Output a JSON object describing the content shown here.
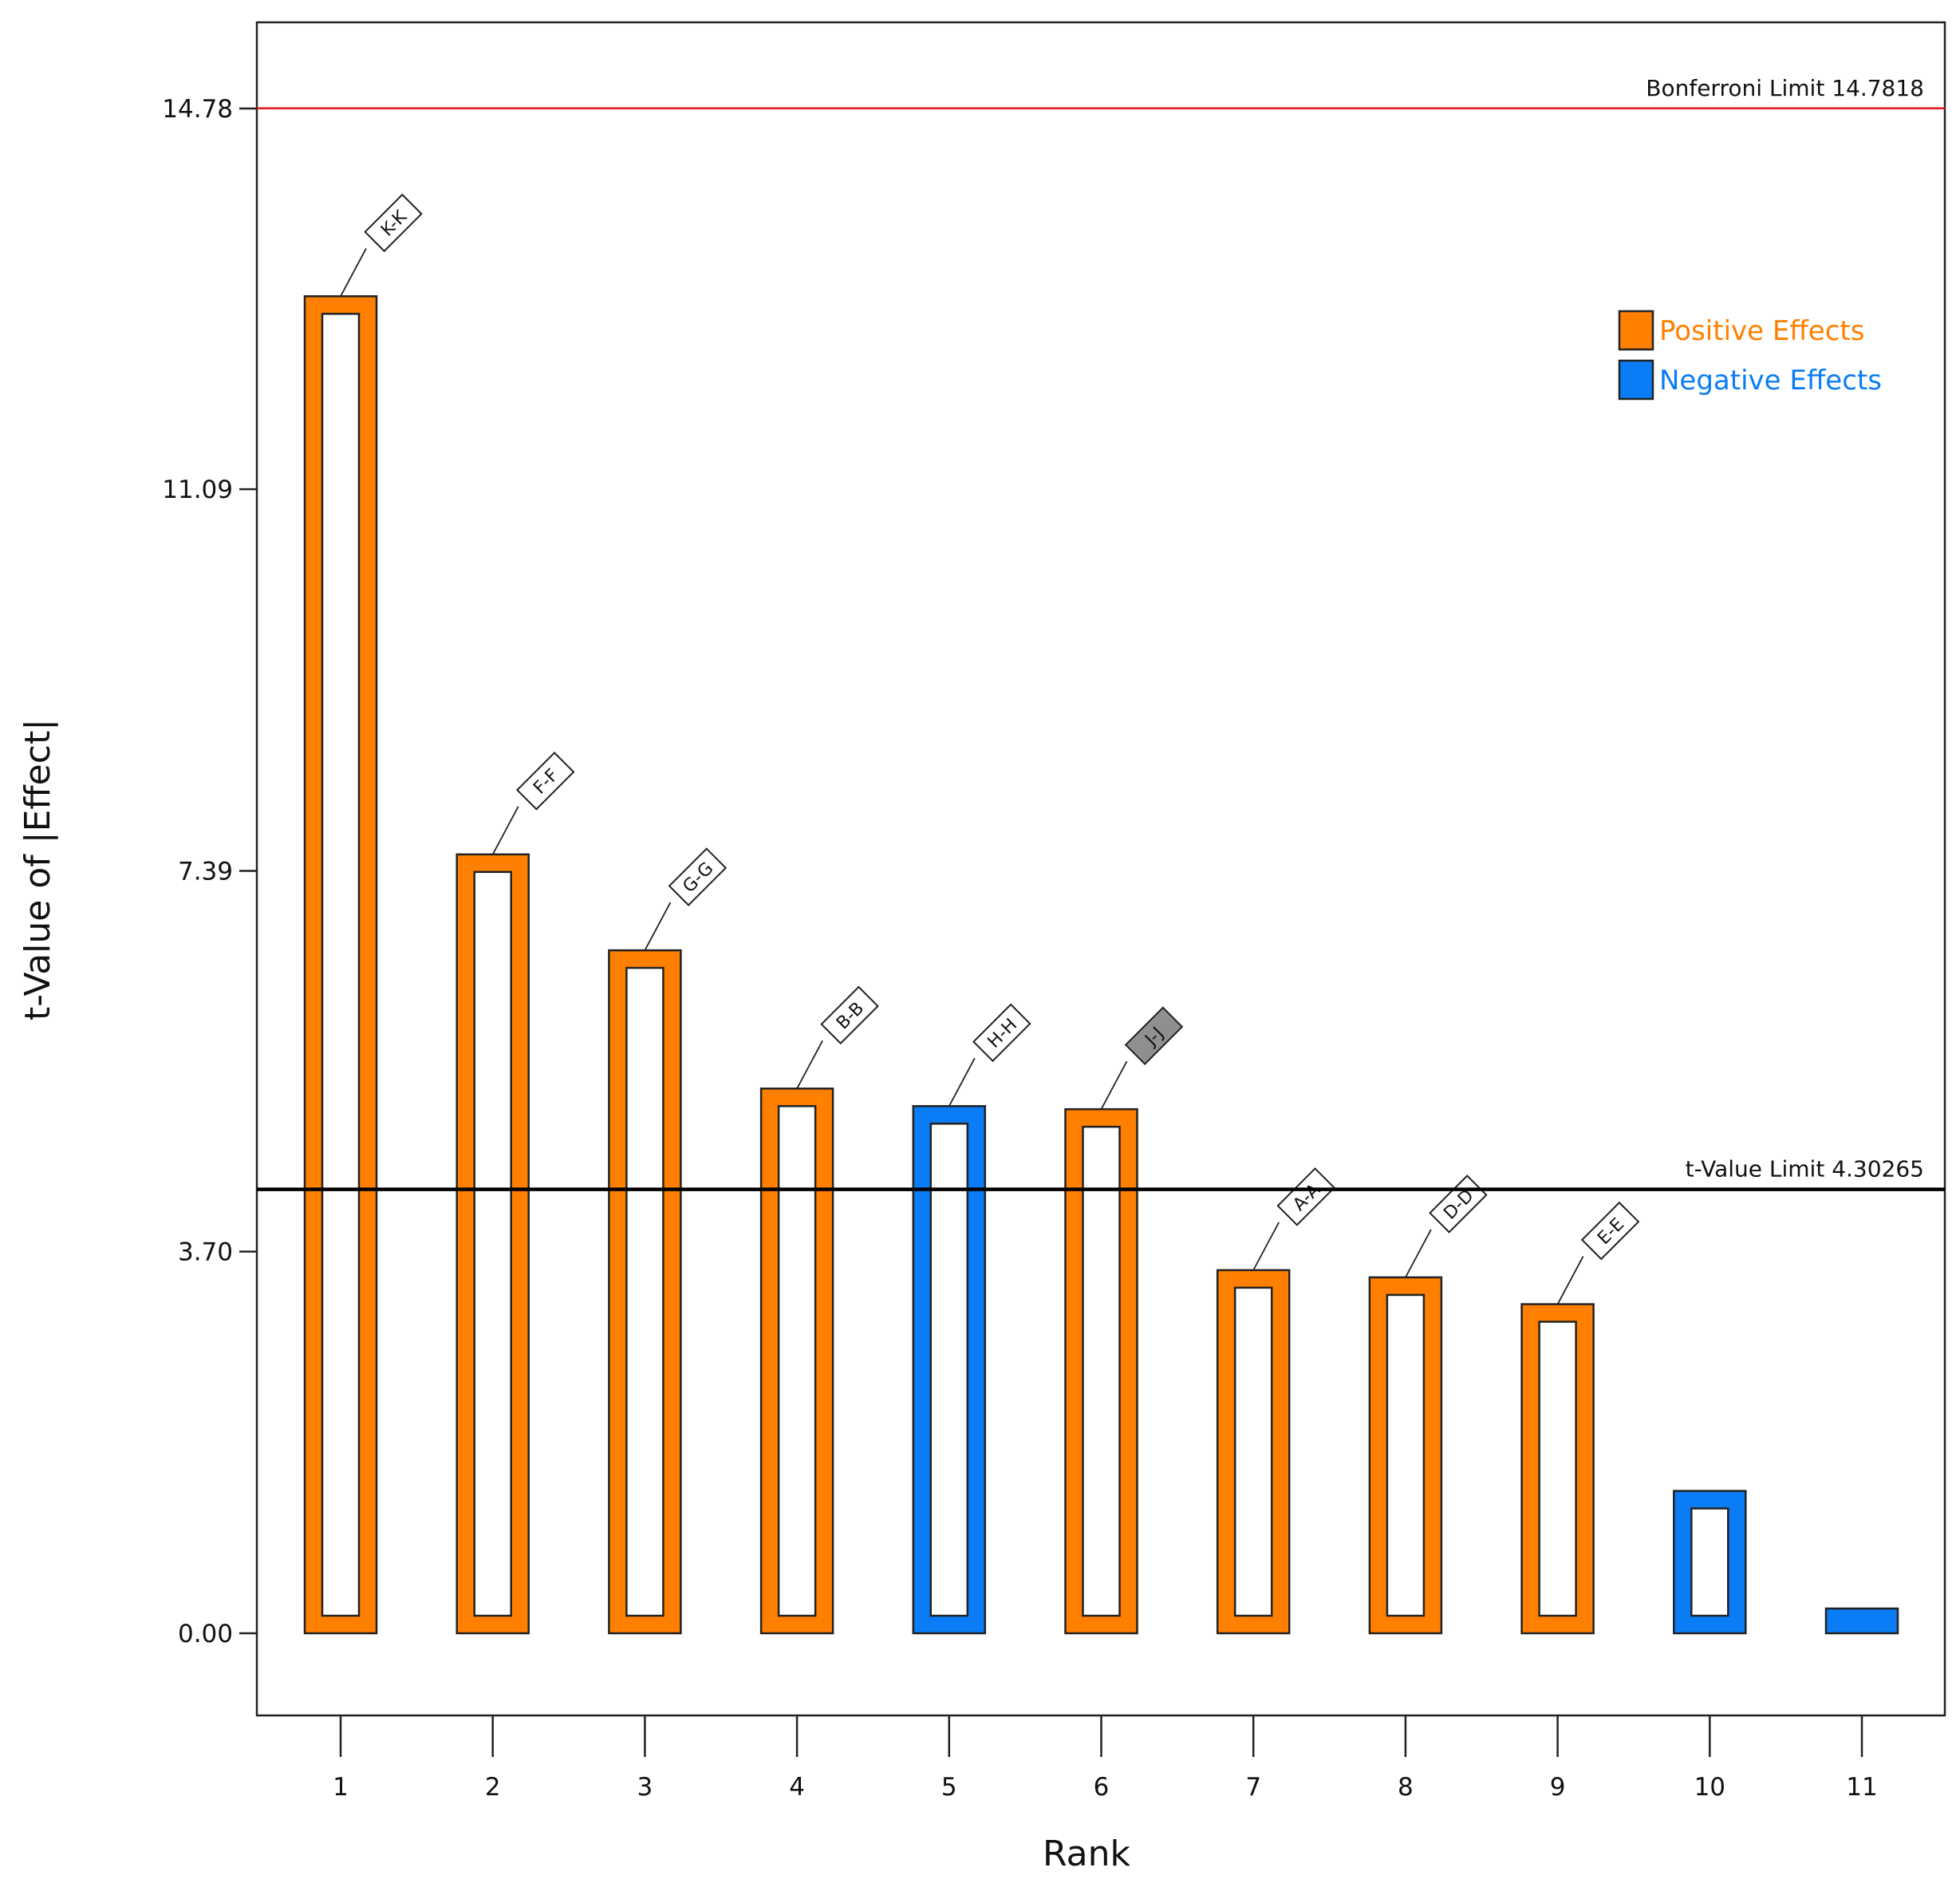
{
  "chart_data": {
    "type": "bar",
    "title": "",
    "xlabel": "Rank",
    "ylabel": "t-Value of |Effect|",
    "ylim": [
      -0.82,
      15.6
    ],
    "yticks": [
      0.0,
      3.7,
      7.39,
      11.09,
      14.78
    ],
    "ytick_labels": [
      "0.00",
      "3.70",
      "7.39",
      "11.09",
      "14.78"
    ],
    "categories": [
      "1",
      "2",
      "3",
      "4",
      "5",
      "6",
      "7",
      "8",
      "9",
      "10",
      "11"
    ],
    "values": [
      12.96,
      7.55,
      6.62,
      5.28,
      5.11,
      5.08,
      3.52,
      3.45,
      3.19,
      1.38,
      0.24
    ],
    "effect_sign": [
      "positive",
      "positive",
      "positive",
      "positive",
      "negative",
      "positive",
      "positive",
      "positive",
      "positive",
      "negative",
      "negative"
    ],
    "term_labels": [
      "K-K",
      "F-F",
      "G-G",
      "B-B",
      "H-H",
      "J-J",
      "A-A",
      "D-D",
      "E-E",
      "",
      ""
    ],
    "label_style": [
      "plain",
      "plain",
      "plain",
      "plain",
      "plain",
      "shaded",
      "plain",
      "plain",
      "plain",
      "none",
      "none"
    ],
    "limits": [
      {
        "name": "Bonferroni Limit",
        "value": 14.7818,
        "label": "Bonferroni Limit 14.7818",
        "color": "#e8161b"
      },
      {
        "name": "t-Value Limit",
        "value": 4.30265,
        "label": "t-Value Limit 4.30265",
        "color": "#000000"
      }
    ],
    "legend": {
      "position": "top-right",
      "entries": [
        {
          "label": "Positive Effects",
          "color": "#ff8000"
        },
        {
          "label": "Negative Effects",
          "color": "#0a7cf5"
        }
      ]
    },
    "colors": {
      "positive": "#ff8000",
      "negative": "#0a7cf5",
      "shaded_label": "#8f8f8f"
    }
  }
}
